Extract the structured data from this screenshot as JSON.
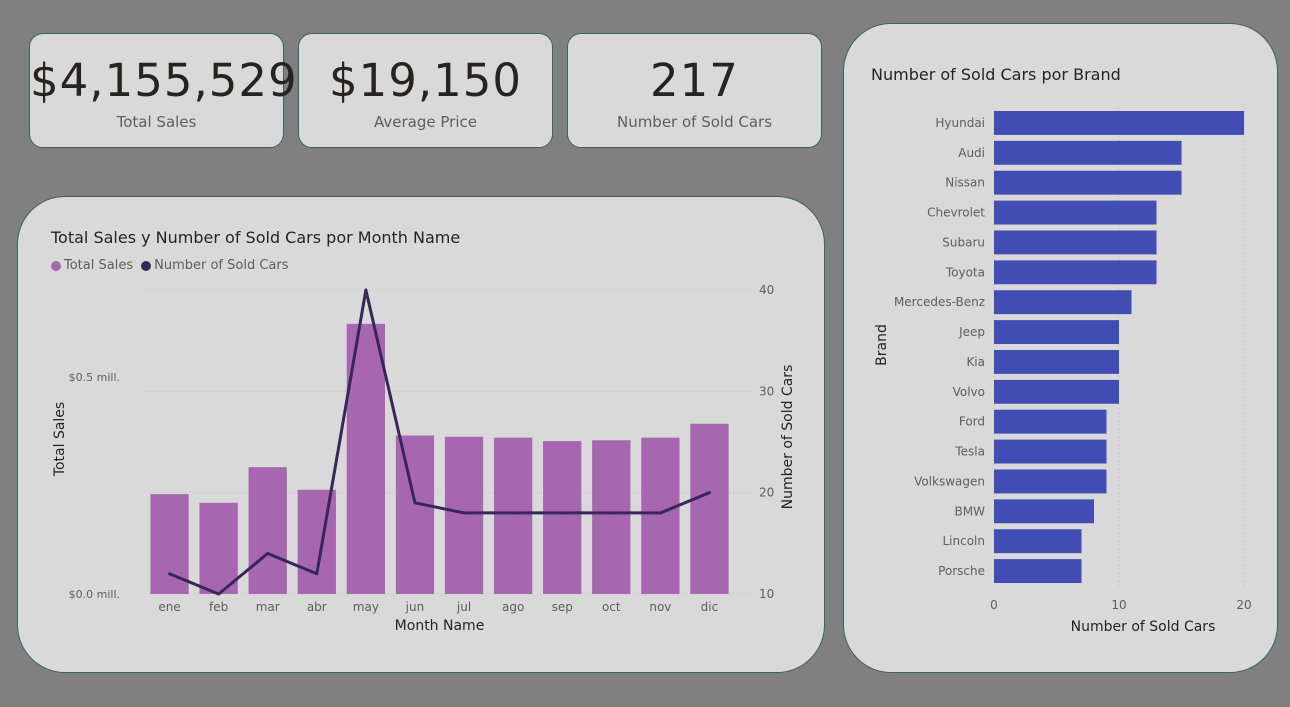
{
  "kpis": [
    {
      "value": "$4,155,529",
      "label": "Total Sales"
    },
    {
      "value": "$19,150",
      "label": "Average Price"
    },
    {
      "value": "217",
      "label": "Number of Sold Cars"
    }
  ],
  "colors": {
    "background": "#808080",
    "card": "#d9d9d9",
    "card_border": "#3a6360",
    "bar_purple": "#a666b0",
    "line_dark": "#372758",
    "bar_blue": "#414db3"
  },
  "chart_data": [
    {
      "type": "bar+line",
      "title": "Total Sales y Number of Sold Cars por Month Name",
      "legend": [
        "Total Sales",
        "Number of Sold Cars"
      ],
      "legend_position": "top-left",
      "xlabel": "Month Name",
      "ylabel": "Total Sales",
      "y2label": "Number of Sold Cars",
      "categories": [
        "ene",
        "feb",
        "mar",
        "abr",
        "may",
        "jun",
        "jul",
        "ago",
        "sep",
        "oct",
        "nov",
        "dic"
      ],
      "series": [
        {
          "name": "Total Sales",
          "type": "bar",
          "axis": "left",
          "values": [
            230000,
            210000,
            292000,
            240000,
            622000,
            365000,
            362000,
            360000,
            352000,
            354000,
            360000,
            392000
          ]
        },
        {
          "name": "Number of Sold Cars",
          "type": "line",
          "axis": "right",
          "values": [
            12,
            10,
            14,
            12,
            40,
            19,
            18,
            18,
            18,
            18,
            18,
            20
          ]
        }
      ],
      "ylim": [
        0,
        700000
      ],
      "y_ticks": [
        {
          "value": 0,
          "label": "$0.0 mill."
        },
        {
          "value": 500000,
          "label": "$0.5 mill."
        }
      ],
      "y2lim": [
        10,
        40
      ],
      "y2_ticks": [
        10,
        20,
        30,
        40
      ],
      "grid": true
    },
    {
      "type": "bar",
      "orientation": "horizontal",
      "title": "Number of Sold Cars por Brand",
      "xlabel": "Number of Sold Cars",
      "ylabel": "Brand",
      "categories": [
        "Hyundai",
        "Audi",
        "Nissan",
        "Chevrolet",
        "Subaru",
        "Toyota",
        "Mercedes-Benz",
        "Jeep",
        "Kia",
        "Volvo",
        "Ford",
        "Tesla",
        "Volkswagen",
        "BMW",
        "Lincoln",
        "Porsche"
      ],
      "values": [
        20,
        15,
        15,
        13,
        13,
        13,
        11,
        10,
        10,
        10,
        9,
        9,
        9,
        8,
        7,
        7
      ],
      "xlim": [
        0,
        20
      ],
      "x_ticks": [
        0,
        10,
        20
      ],
      "grid": true
    }
  ]
}
